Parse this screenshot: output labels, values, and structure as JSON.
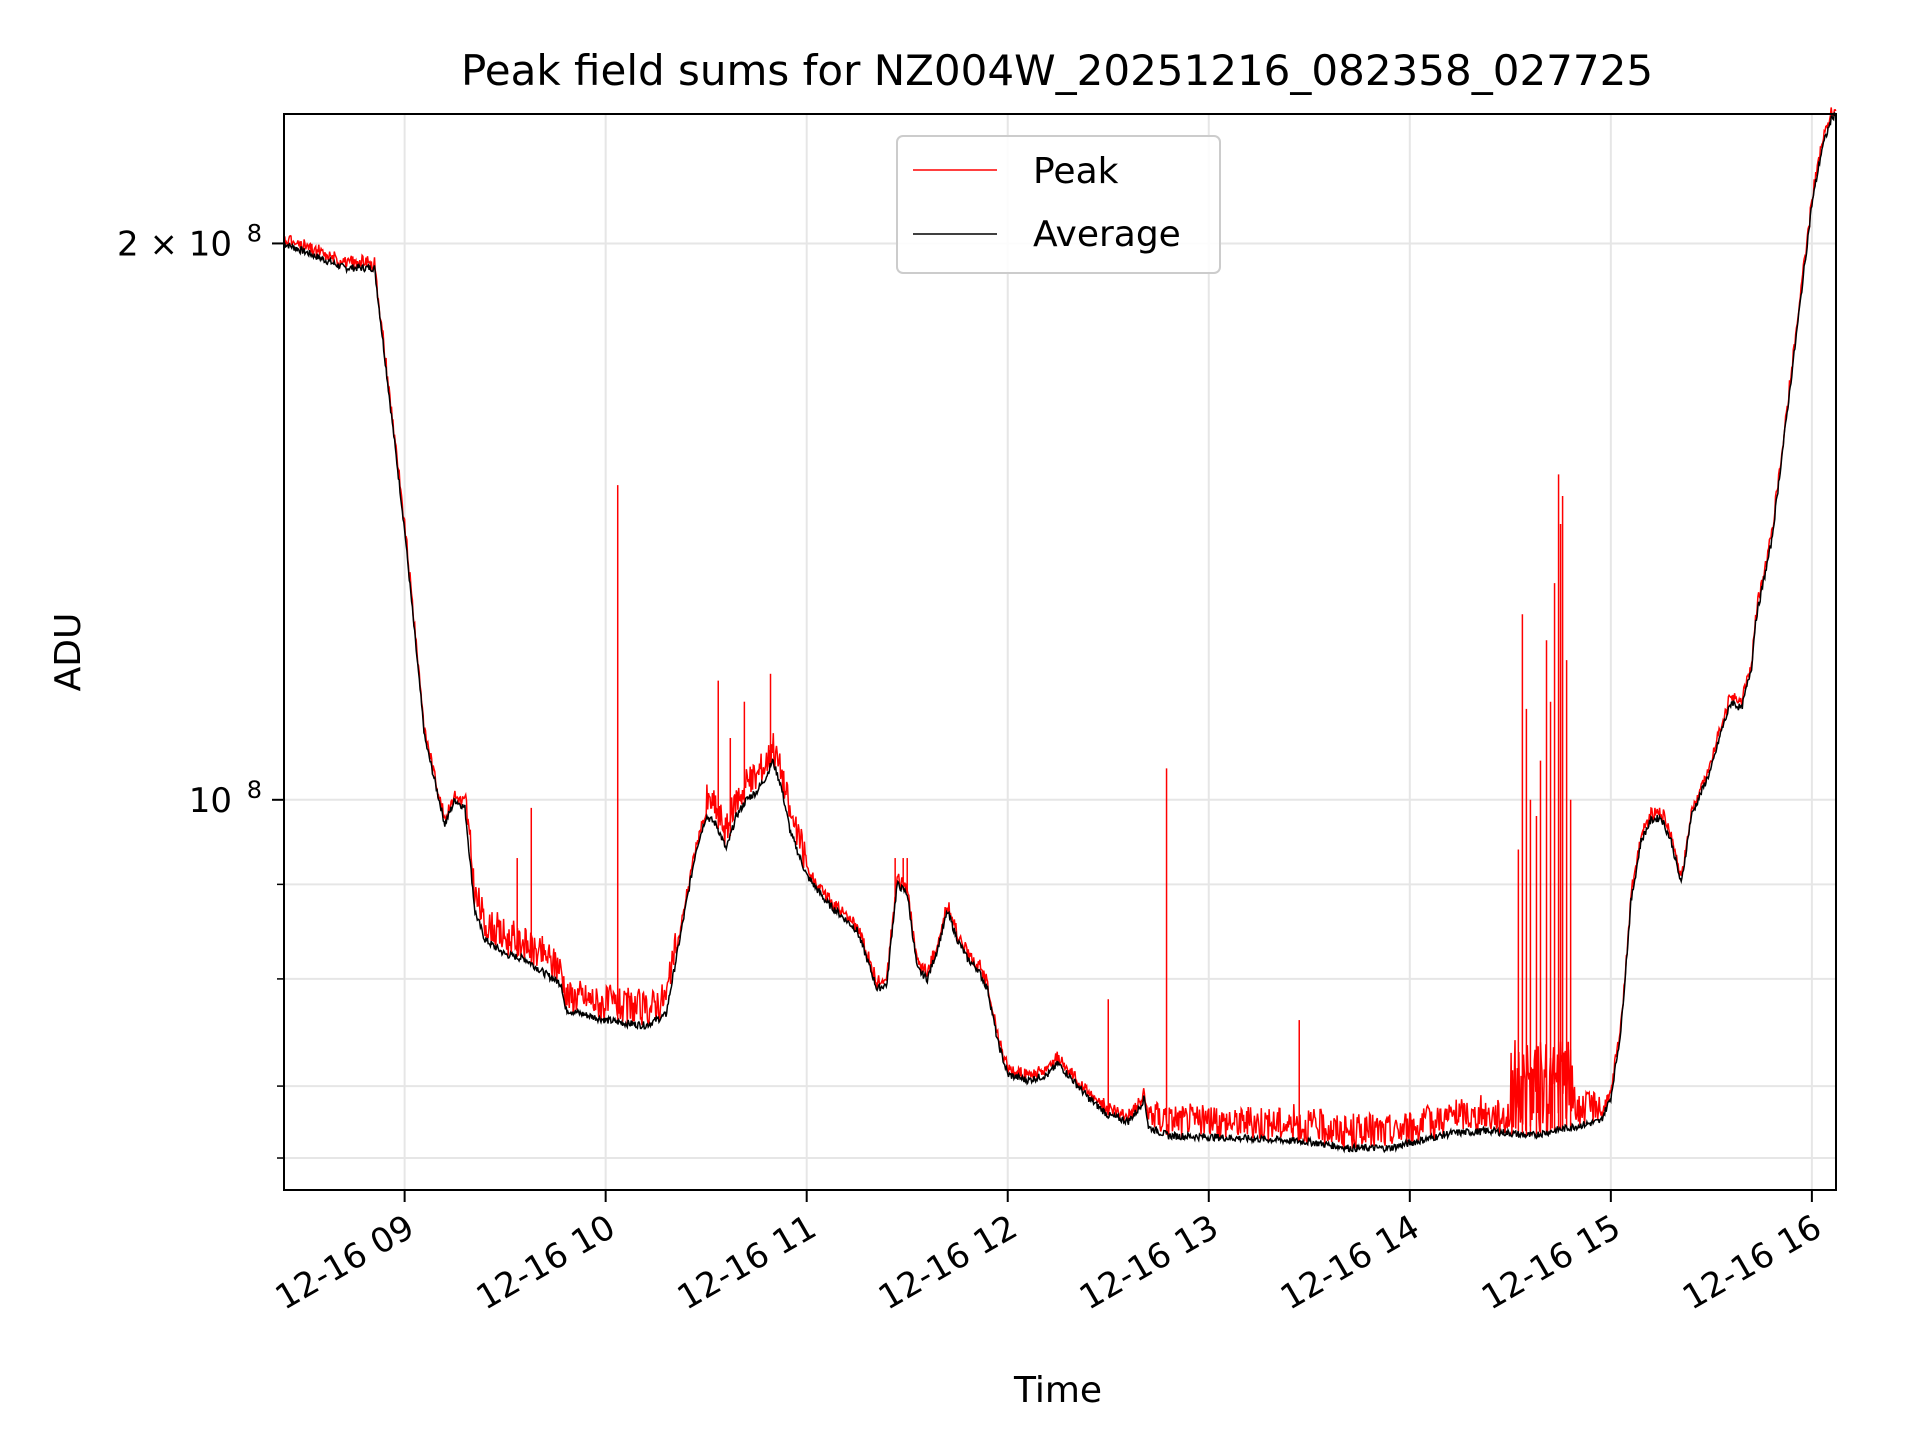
{
  "chart_data": {
    "type": "line",
    "title": "Peak field sums for NZ004W_20251216_082358_027725",
    "xlabel": "Time",
    "ylabel": "ADU",
    "yscale": "log",
    "xlim": [
      8.4,
      16.12
    ],
    "ylim": [
      61500000,
      235000000
    ],
    "x_ticks": [
      {
        "value": 9,
        "label": "12-16 09"
      },
      {
        "value": 10,
        "label": "12-16 10"
      },
      {
        "value": 11,
        "label": "12-16 11"
      },
      {
        "value": 12,
        "label": "12-16 12"
      },
      {
        "value": 13,
        "label": "12-16 13"
      },
      {
        "value": 14,
        "label": "12-16 14"
      },
      {
        "value": 15,
        "label": "12-16 15"
      },
      {
        "value": 16,
        "label": "12-16 16"
      }
    ],
    "y_ticks": [
      {
        "value": 100000000,
        "label": "10",
        "exp": "8"
      },
      {
        "value": 200000000,
        "label": "2 × 10",
        "exp": "8"
      }
    ],
    "y_minor_ticks": [
      64000000,
      70000000,
      80000000,
      90000000
    ],
    "grid": true,
    "legend_position": "top-center",
    "series": [
      {
        "name": "Average",
        "color": "#000000",
        "x": [
          8.4,
          8.55,
          8.7,
          8.85,
          9.0,
          9.1,
          9.2,
          9.25,
          9.3,
          9.35,
          9.4,
          9.5,
          9.6,
          9.7,
          9.78,
          9.8,
          9.9,
          10.0,
          10.1,
          10.2,
          10.3,
          10.45,
          10.5,
          10.55,
          10.6,
          10.65,
          10.7,
          10.75,
          10.8,
          10.83,
          10.87,
          10.92,
          11.0,
          11.1,
          11.2,
          11.25,
          11.3,
          11.35,
          11.4,
          11.42,
          11.45,
          11.5,
          11.55,
          11.6,
          11.65,
          11.7,
          11.75,
          11.8,
          11.85,
          11.9,
          11.95,
          12.0,
          12.1,
          12.2,
          12.25,
          12.3,
          12.4,
          12.5,
          12.6,
          12.65,
          12.68,
          12.7,
          12.8,
          13.0,
          13.3,
          13.5,
          13.7,
          13.9,
          14.0,
          14.2,
          14.4,
          14.6,
          14.8,
          14.95,
          15.0,
          15.05,
          15.1,
          15.15,
          15.2,
          15.25,
          15.3,
          15.35,
          15.4,
          15.5,
          15.55,
          15.6,
          15.65,
          15.7,
          15.72,
          15.8,
          15.9,
          16.0,
          16.05,
          16.1,
          16.12
        ],
        "values": [
          200000000,
          197000000,
          194000000,
          194000000,
          140000000,
          108000000,
          97000000,
          100000000,
          99000000,
          87000000,
          84000000,
          82500000,
          82000000,
          80500000,
          79500000,
          77000000,
          76500000,
          76000000,
          75700000,
          75500000,
          76500000,
          94000000,
          98000000,
          97000000,
          94000000,
          98000000,
          100000000,
          101000000,
          103000000,
          105000000,
          102000000,
          96000000,
          91000000,
          88000000,
          86000000,
          85000000,
          82000000,
          79000000,
          79500000,
          84000000,
          90000000,
          89000000,
          81000000,
          80000000,
          83000000,
          87000000,
          84000000,
          82000000,
          81000000,
          79000000,
          74000000,
          71000000,
          70500000,
          71000000,
          72000000,
          71000000,
          69000000,
          67500000,
          67000000,
          68000000,
          69000000,
          66500000,
          65800000,
          65700000,
          65500000,
          65300000,
          64800000,
          64800000,
          65200000,
          66000000,
          66200000,
          65800000,
          66500000,
          67000000,
          69000000,
          75000000,
          88000000,
          95000000,
          97500000,
          97800000,
          95000000,
          90000000,
          98000000,
          104000000,
          109000000,
          113000000,
          112000000,
          118000000,
          125000000,
          138000000,
          170000000,
          210000000,
          225000000,
          234000000,
          235000000
        ]
      },
      {
        "name": "Peak",
        "color": "#ff0000",
        "spikes": [
          {
            "x": 9.56,
            "value": 93000000
          },
          {
            "x": 9.63,
            "value": 99000000
          },
          {
            "x": 10.06,
            "value": 148000000
          },
          {
            "x": 10.56,
            "value": 116000000
          },
          {
            "x": 10.62,
            "value": 108000000
          },
          {
            "x": 10.69,
            "value": 113000000
          },
          {
            "x": 10.82,
            "value": 117000000
          },
          {
            "x": 11.44,
            "value": 93000000
          },
          {
            "x": 11.48,
            "value": 93000000
          },
          {
            "x": 11.5,
            "value": 93000000
          },
          {
            "x": 12.5,
            "value": 78000000
          },
          {
            "x": 12.79,
            "value": 104000000
          },
          {
            "x": 13.45,
            "value": 76000000
          },
          {
            "x": 14.54,
            "value": 94000000
          },
          {
            "x": 14.56,
            "value": 126000000
          },
          {
            "x": 14.58,
            "value": 112000000
          },
          {
            "x": 14.6,
            "value": 100000000
          },
          {
            "x": 14.63,
            "value": 98000000
          },
          {
            "x": 14.65,
            "value": 105000000
          },
          {
            "x": 14.68,
            "value": 122000000
          },
          {
            "x": 14.7,
            "value": 113000000
          },
          {
            "x": 14.72,
            "value": 131000000
          },
          {
            "x": 14.74,
            "value": 150000000
          },
          {
            "x": 14.75,
            "value": 141000000
          },
          {
            "x": 14.76,
            "value": 146000000
          },
          {
            "x": 14.78,
            "value": 119000000
          },
          {
            "x": 14.8,
            "value": 100000000
          }
        ]
      }
    ]
  }
}
